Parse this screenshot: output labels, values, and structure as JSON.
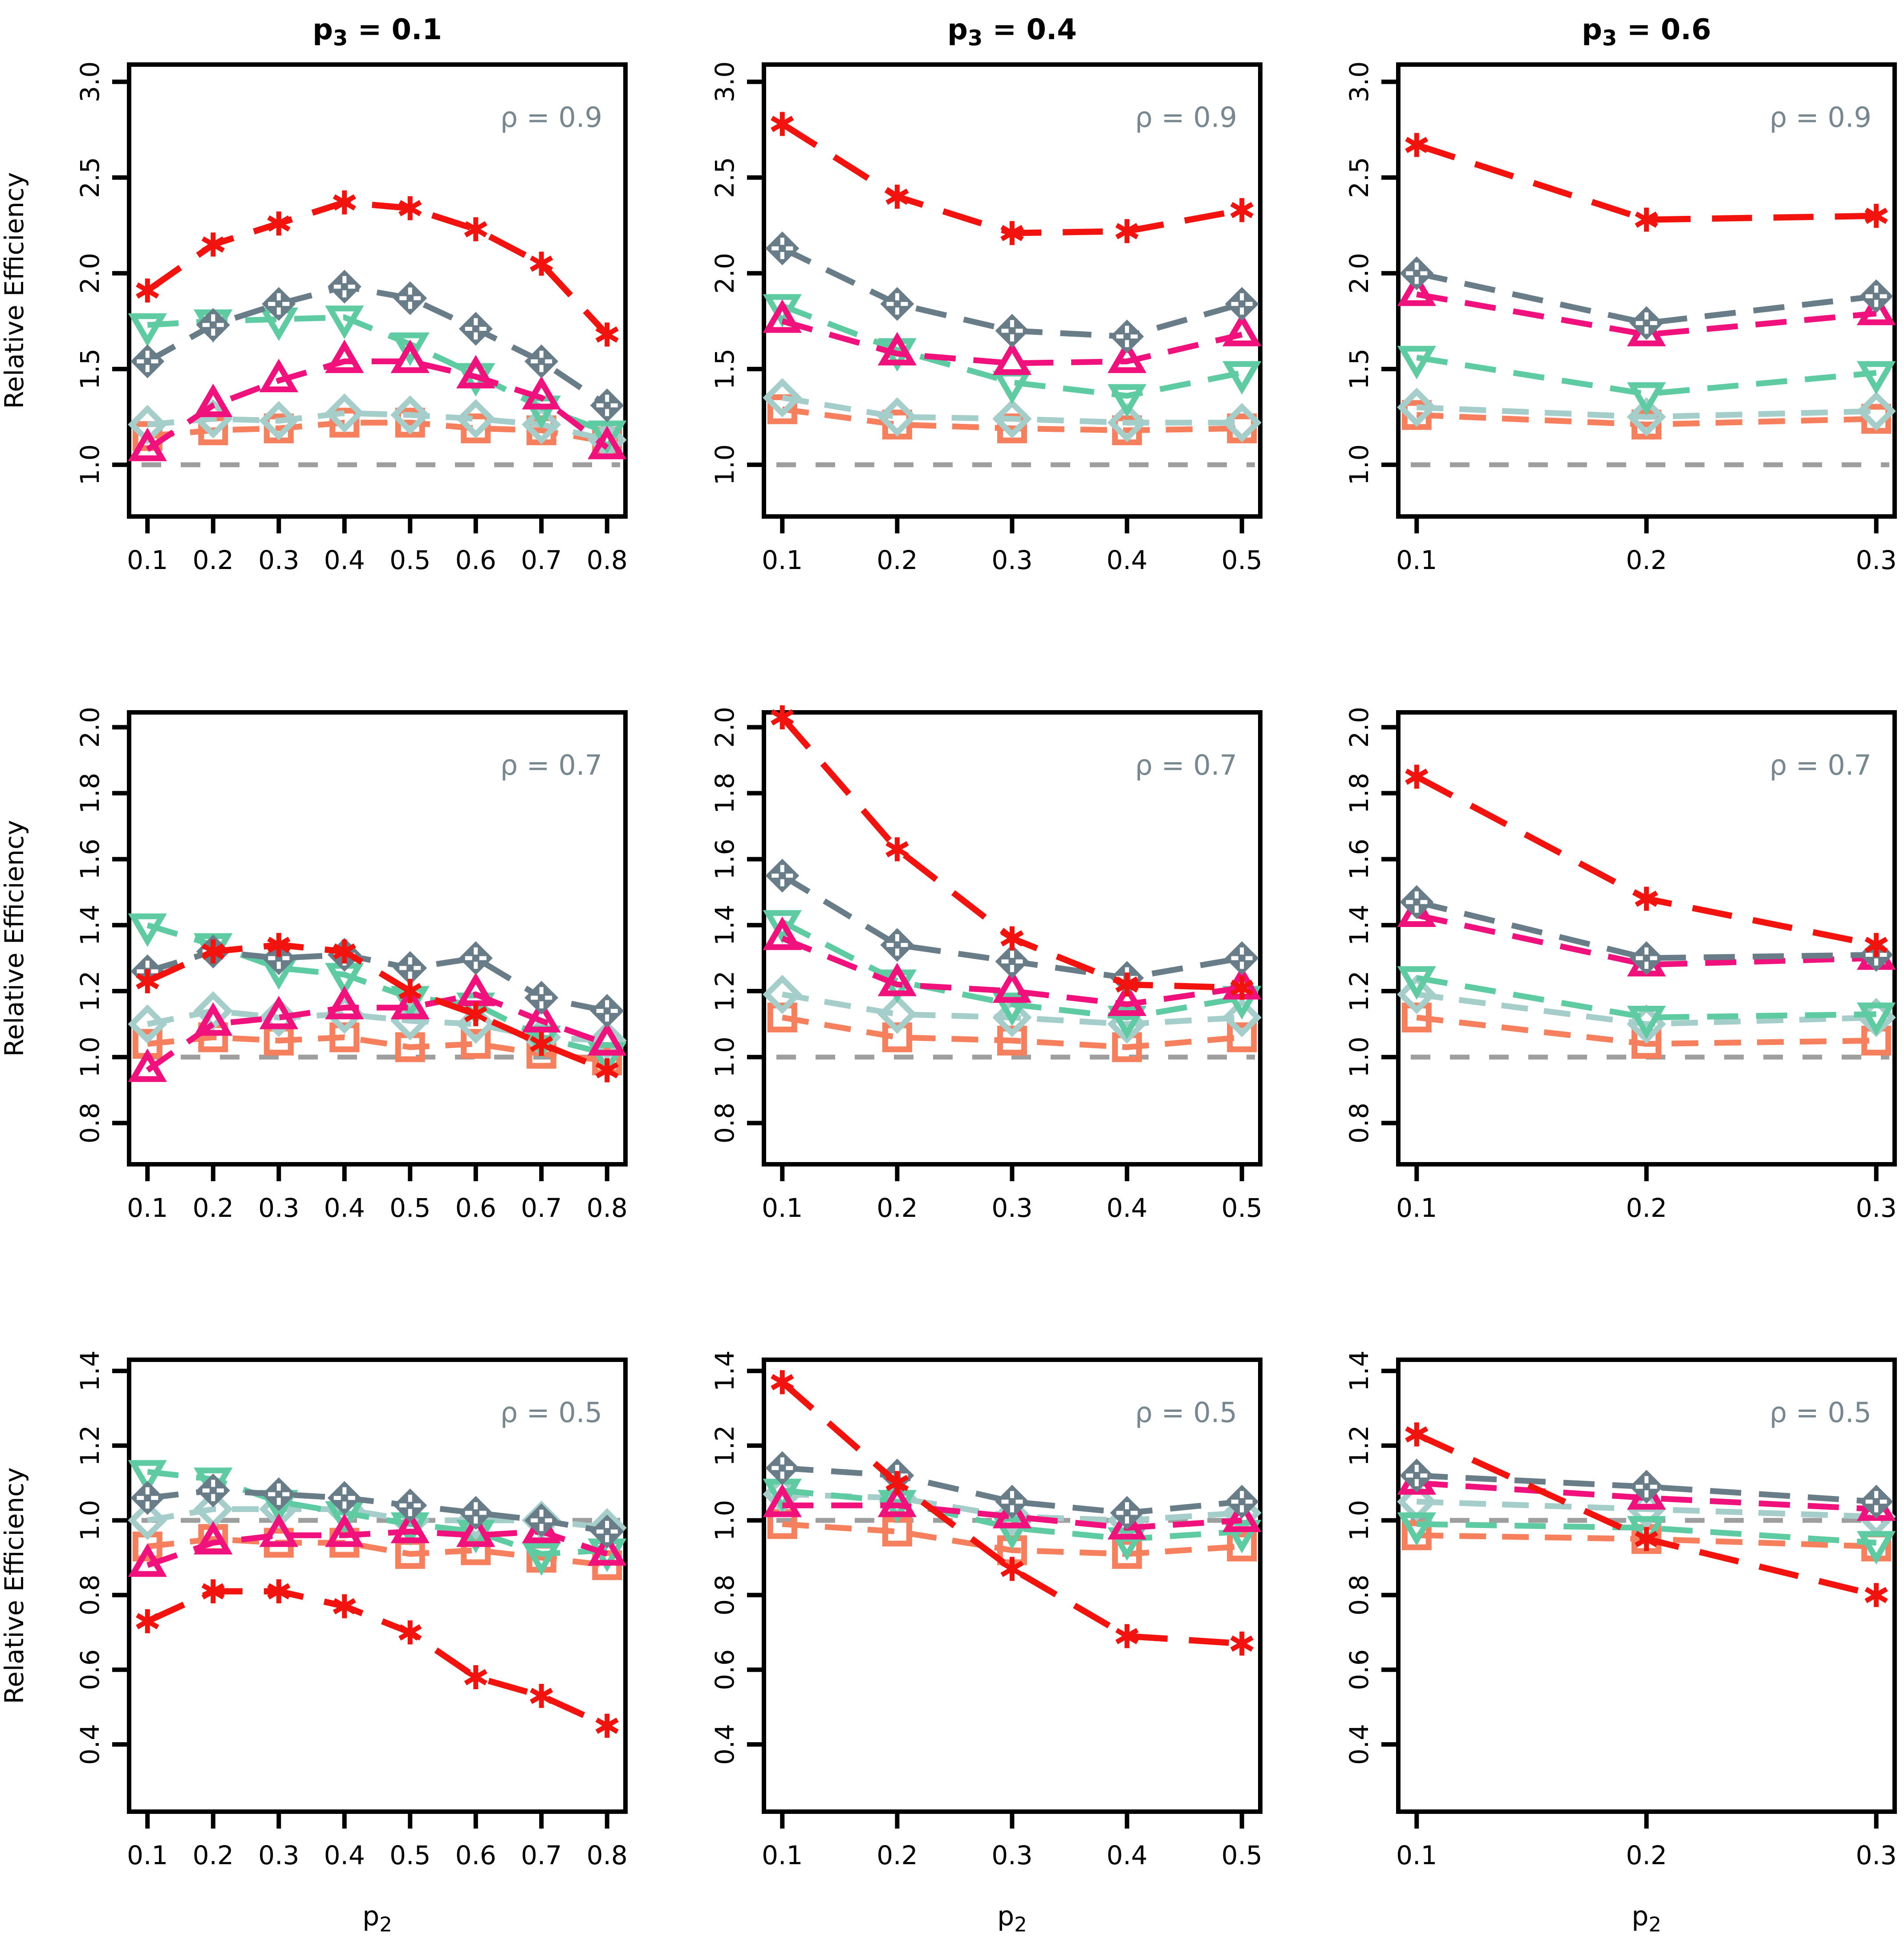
{
  "figure_title": "",
  "layout": {
    "ylab": "Relative Efficiency",
    "xlab": {
      "prefix": "p",
      "sub": "2"
    },
    "column_titles": [
      {
        "prefix": "p",
        "sub": "3",
        "rest": " = 0.1"
      },
      {
        "prefix": "p",
        "sub": "3",
        "rest": " = 0.4"
      },
      {
        "prefix": "p",
        "sub": "3",
        "rest": " = 0.6"
      }
    ],
    "row_annotations": [
      "ρ = 0.9",
      "ρ = 0.7",
      "ρ = 0.5"
    ],
    "colors": {
      "red": "#f2130e",
      "slate": "#687d87",
      "slate_inner": "#ffffff",
      "green": "#5fcba3",
      "magenta": "#f0117c",
      "lightblue": "#a5cdca",
      "orange": "#f67f5d",
      "reference_gray": "#9e9e9e",
      "annotation_text": "#76878f",
      "axis_black": "#000000"
    },
    "draw_order": [
      "square",
      "diamond",
      "triangle_down",
      "triangle_up",
      "diamond_plus",
      "asterisk"
    ],
    "series_styles": {
      "asterisk": {
        "label": "asterisk-red",
        "color": "#f2130e",
        "dash": "90 48",
        "width": 14,
        "marker": "asterisk"
      },
      "diamond_plus": {
        "label": "diamond-plus-slate",
        "color": "#687d87",
        "dash": "70 40",
        "width": 13,
        "marker": "diamond_plus"
      },
      "triangle_down": {
        "label": "triangle-down-green",
        "color": "#5fcba3",
        "dash": "70 40",
        "width": 13,
        "marker": "triangle_down"
      },
      "triangle_up": {
        "label": "triangle-up-magenta",
        "color": "#f0117c",
        "dash": "70 40",
        "width": 13,
        "marker": "triangle_up"
      },
      "diamond": {
        "label": "diamond-lightblue",
        "color": "#a5cdca",
        "dash": "60 36",
        "width": 13,
        "marker": "diamond"
      },
      "square": {
        "label": "square-orange",
        "color": "#f67f5d",
        "dash": "60 36",
        "width": 13,
        "marker": "square"
      }
    }
  },
  "chart_data": [
    {
      "type": "line",
      "row": 0,
      "col": 0,
      "title": {
        "prefix": "p",
        "sub": "3",
        "rest": " = 0.1"
      },
      "annotation": "ρ = 0.9",
      "xlabel": "p2",
      "ylabel": "Relative Efficiency",
      "x": [
        0.1,
        0.2,
        0.3,
        0.4,
        0.5,
        0.6,
        0.7,
        0.8
      ],
      "xticks": [
        0.1,
        0.2,
        0.3,
        0.4,
        0.5,
        0.6,
        0.7,
        0.8
      ],
      "yticks": [
        1.0,
        1.5,
        2.0,
        2.5,
        3.0
      ],
      "xlim": [
        0.072,
        0.828
      ],
      "ylim": [
        0.73,
        3.09
      ],
      "reference_line": 1.0,
      "series": {
        "asterisk": [
          1.91,
          2.15,
          2.26,
          2.37,
          2.34,
          2.23,
          2.05,
          1.68
        ],
        "diamond_plus": [
          1.54,
          1.73,
          1.84,
          1.93,
          1.87,
          1.71,
          1.54,
          1.31
        ],
        "triangle_down": [
          1.73,
          1.75,
          1.76,
          1.77,
          1.63,
          1.47,
          1.3,
          1.17
        ],
        "triangle_up": [
          1.08,
          1.31,
          1.44,
          1.54,
          1.54,
          1.46,
          1.35,
          1.09
        ],
        "diamond": [
          1.21,
          1.24,
          1.23,
          1.27,
          1.26,
          1.24,
          1.21,
          1.13
        ],
        "square": [
          1.15,
          1.18,
          1.19,
          1.22,
          1.22,
          1.19,
          1.18,
          1.12
        ]
      }
    },
    {
      "type": "line",
      "row": 0,
      "col": 1,
      "title": {
        "prefix": "p",
        "sub": "3",
        "rest": " = 0.4"
      },
      "annotation": "ρ = 0.9",
      "xlabel": "p2",
      "ylabel": "Relative Efficiency",
      "x": [
        0.1,
        0.2,
        0.3,
        0.4,
        0.5
      ],
      "xticks": [
        0.1,
        0.2,
        0.3,
        0.4,
        0.5
      ],
      "yticks": [
        1.0,
        1.5,
        2.0,
        2.5,
        3.0
      ],
      "xlim": [
        0.084,
        0.516
      ],
      "ylim": [
        0.73,
        3.09
      ],
      "reference_line": 1.0,
      "series": {
        "asterisk": [
          2.78,
          2.4,
          2.21,
          2.22,
          2.33
        ],
        "diamond_plus": [
          2.13,
          1.84,
          1.7,
          1.67,
          1.84
        ],
        "triangle_down": [
          1.83,
          1.6,
          1.43,
          1.36,
          1.48
        ],
        "triangle_up": [
          1.75,
          1.58,
          1.53,
          1.54,
          1.68
        ],
        "diamond": [
          1.35,
          1.25,
          1.24,
          1.22,
          1.22
        ],
        "square": [
          1.29,
          1.21,
          1.19,
          1.18,
          1.19
        ]
      }
    },
    {
      "type": "line",
      "row": 0,
      "col": 2,
      "title": {
        "prefix": "p",
        "sub": "3",
        "rest": " = 0.6"
      },
      "annotation": "ρ = 0.9",
      "xlabel": "p2",
      "ylabel": "Relative Efficiency",
      "x": [
        0.1,
        0.2,
        0.3
      ],
      "xticks": [
        0.1,
        0.2,
        0.3
      ],
      "yticks": [
        1.0,
        1.5,
        2.0,
        2.5,
        3.0
      ],
      "xlim": [
        0.092,
        0.308
      ],
      "ylim": [
        0.73,
        3.09
      ],
      "reference_line": 1.0,
      "series": {
        "asterisk": [
          2.67,
          2.28,
          2.3
        ],
        "diamond_plus": [
          2.0,
          1.74,
          1.88
        ],
        "triangle_down": [
          1.56,
          1.37,
          1.48
        ],
        "triangle_up": [
          1.89,
          1.68,
          1.79
        ],
        "diamond": [
          1.3,
          1.25,
          1.28
        ],
        "square": [
          1.26,
          1.21,
          1.24
        ]
      }
    },
    {
      "type": "line",
      "row": 1,
      "col": 0,
      "title": null,
      "annotation": "ρ = 0.7",
      "xlabel": "p2",
      "ylabel": "Relative Efficiency",
      "x": [
        0.1,
        0.2,
        0.3,
        0.4,
        0.5,
        0.6,
        0.7,
        0.8
      ],
      "xticks": [
        0.1,
        0.2,
        0.3,
        0.4,
        0.5,
        0.6,
        0.7,
        0.8
      ],
      "yticks": [
        0.8,
        1.0,
        1.2,
        1.4,
        1.6,
        1.8,
        2.0
      ],
      "xlim": [
        0.072,
        0.828
      ],
      "ylim": [
        0.675,
        2.045
      ],
      "reference_line": 1.0,
      "series": {
        "asterisk": [
          1.23,
          1.32,
          1.34,
          1.32,
          1.2,
          1.13,
          1.04,
          0.96
        ],
        "diamond_plus": [
          1.26,
          1.32,
          1.3,
          1.31,
          1.27,
          1.3,
          1.18,
          1.14
        ],
        "triangle_down": [
          1.4,
          1.34,
          1.27,
          1.25,
          1.18,
          1.16,
          1.06,
          1.01
        ],
        "triangle_up": [
          0.96,
          1.1,
          1.12,
          1.15,
          1.15,
          1.19,
          1.11,
          1.04
        ],
        "diamond": [
          1.1,
          1.14,
          1.12,
          1.13,
          1.11,
          1.1,
          1.06,
          1.05
        ],
        "square": [
          1.04,
          1.06,
          1.05,
          1.06,
          1.03,
          1.04,
          1.01,
          0.99
        ]
      }
    },
    {
      "type": "line",
      "row": 1,
      "col": 1,
      "title": null,
      "annotation": "ρ = 0.7",
      "xlabel": "p2",
      "ylabel": "Relative Efficiency",
      "x": [
        0.1,
        0.2,
        0.3,
        0.4,
        0.5
      ],
      "xticks": [
        0.1,
        0.2,
        0.3,
        0.4,
        0.5
      ],
      "yticks": [
        0.8,
        1.0,
        1.2,
        1.4,
        1.6,
        1.8,
        2.0
      ],
      "xlim": [
        0.084,
        0.516
      ],
      "ylim": [
        0.675,
        2.045
      ],
      "reference_line": 1.0,
      "series": {
        "asterisk": [
          2.03,
          1.63,
          1.36,
          1.22,
          1.21
        ],
        "diamond_plus": [
          1.55,
          1.34,
          1.29,
          1.24,
          1.3
        ],
        "triangle_down": [
          1.41,
          1.23,
          1.16,
          1.12,
          1.18
        ],
        "triangle_up": [
          1.36,
          1.22,
          1.2,
          1.16,
          1.21
        ],
        "diamond": [
          1.19,
          1.13,
          1.12,
          1.1,
          1.12
        ],
        "square": [
          1.12,
          1.06,
          1.05,
          1.03,
          1.06
        ]
      }
    },
    {
      "type": "line",
      "row": 1,
      "col": 2,
      "title": null,
      "annotation": "ρ = 0.7",
      "xlabel": "p2",
      "ylabel": "Relative Efficiency",
      "x": [
        0.1,
        0.2,
        0.3
      ],
      "xticks": [
        0.1,
        0.2,
        0.3
      ],
      "yticks": [
        0.8,
        1.0,
        1.2,
        1.4,
        1.6,
        1.8,
        2.0
      ],
      "xlim": [
        0.092,
        0.308
      ],
      "ylim": [
        0.675,
        2.045
      ],
      "reference_line": 1.0,
      "series": {
        "asterisk": [
          1.85,
          1.48,
          1.34
        ],
        "diamond_plus": [
          1.47,
          1.3,
          1.31
        ],
        "triangle_down": [
          1.24,
          1.12,
          1.13
        ],
        "triangle_up": [
          1.43,
          1.28,
          1.3
        ],
        "diamond": [
          1.19,
          1.1,
          1.12
        ],
        "square": [
          1.12,
          1.04,
          1.05
        ]
      }
    },
    {
      "type": "line",
      "row": 2,
      "col": 0,
      "title": null,
      "annotation": "ρ = 0.5",
      "xlabel": "p2",
      "ylabel": "Relative Efficiency",
      "x": [
        0.1,
        0.2,
        0.3,
        0.4,
        0.5,
        0.6,
        0.7,
        0.8
      ],
      "xticks": [
        0.1,
        0.2,
        0.3,
        0.4,
        0.5,
        0.6,
        0.7,
        0.8
      ],
      "yticks": [
        0.4,
        0.6,
        0.8,
        1.0,
        1.2,
        1.4
      ],
      "xlim": [
        0.072,
        0.828
      ],
      "ylim": [
        0.22,
        1.43
      ],
      "reference_line": 1.0,
      "series": {
        "asterisk": [
          0.73,
          0.81,
          0.81,
          0.77,
          0.7,
          0.58,
          0.53,
          0.45
        ],
        "diamond_plus": [
          1.06,
          1.08,
          1.07,
          1.06,
          1.04,
          1.02,
          1.0,
          0.97
        ],
        "triangle_down": [
          1.13,
          1.11,
          1.05,
          1.02,
          0.99,
          0.97,
          0.91,
          0.92
        ],
        "triangle_up": [
          0.88,
          0.94,
          0.96,
          0.96,
          0.97,
          0.96,
          0.97,
          0.91
        ],
        "diamond": [
          1.0,
          1.03,
          1.03,
          1.03,
          1.0,
          1.0,
          1.0,
          0.98
        ],
        "square": [
          0.93,
          0.95,
          0.94,
          0.94,
          0.91,
          0.92,
          0.9,
          0.88
        ]
      }
    },
    {
      "type": "line",
      "row": 2,
      "col": 1,
      "title": null,
      "annotation": "ρ = 0.5",
      "xlabel": "p2",
      "ylabel": "Relative Efficiency",
      "x": [
        0.1,
        0.2,
        0.3,
        0.4,
        0.5
      ],
      "xticks": [
        0.1,
        0.2,
        0.3,
        0.4,
        0.5
      ],
      "yticks": [
        0.4,
        0.6,
        0.8,
        1.0,
        1.2,
        1.4
      ],
      "xlim": [
        0.084,
        0.516
      ],
      "ylim": [
        0.22,
        1.43
      ],
      "reference_line": 1.0,
      "series": {
        "asterisk": [
          1.37,
          1.1,
          0.87,
          0.69,
          0.67
        ],
        "diamond_plus": [
          1.14,
          1.12,
          1.05,
          1.02,
          1.05
        ],
        "triangle_down": [
          1.08,
          1.05,
          0.98,
          0.95,
          0.97
        ],
        "triangle_up": [
          1.04,
          1.04,
          1.01,
          0.98,
          1.0
        ],
        "diamond": [
          1.07,
          1.06,
          1.01,
          1.0,
          1.02
        ],
        "square": [
          0.99,
          0.97,
          0.92,
          0.91,
          0.93
        ]
      }
    },
    {
      "type": "line",
      "row": 2,
      "col": 2,
      "title": null,
      "annotation": "ρ = 0.5",
      "xlabel": "p2",
      "ylabel": "Relative Efficiency",
      "x": [
        0.1,
        0.2,
        0.3
      ],
      "xticks": [
        0.1,
        0.2,
        0.3
      ],
      "yticks": [
        0.4,
        0.6,
        0.8,
        1.0,
        1.2,
        1.4
      ],
      "xlim": [
        0.092,
        0.308
      ],
      "ylim": [
        0.22,
        1.43
      ],
      "reference_line": 1.0,
      "series": {
        "asterisk": [
          1.23,
          0.95,
          0.8
        ],
        "diamond_plus": [
          1.12,
          1.09,
          1.05
        ],
        "triangle_down": [
          0.99,
          0.98,
          0.94
        ],
        "triangle_up": [
          1.1,
          1.06,
          1.03
        ],
        "diamond": [
          1.05,
          1.03,
          1.01
        ],
        "square": [
          0.96,
          0.95,
          0.93
        ]
      }
    }
  ]
}
